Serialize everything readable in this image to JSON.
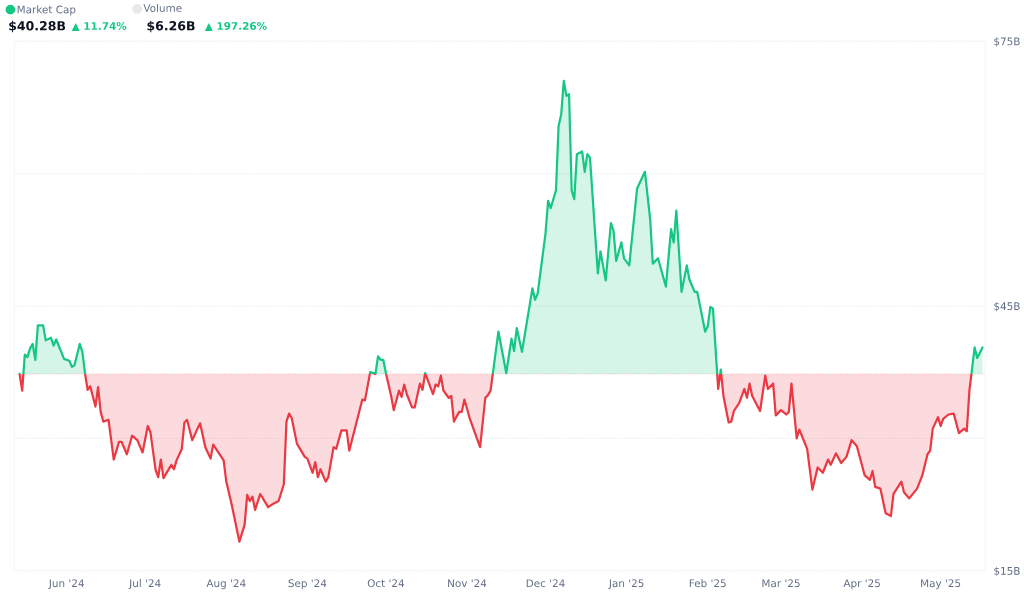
{
  "chart_data": {
    "type": "area",
    "x": [
      "2024-05-14",
      "2024-05-15",
      "2024-05-16",
      "2024-05-17",
      "2024-05-18",
      "2024-05-19",
      "2024-05-20",
      "2024-05-21",
      "2024-05-23",
      "2024-05-24",
      "2024-05-26",
      "2024-05-27",
      "2024-05-28",
      "2024-05-31",
      "2024-06-02",
      "2024-06-03",
      "2024-06-04",
      "2024-06-06",
      "2024-06-07",
      "2024-06-08",
      "2024-06-09",
      "2024-06-10",
      "2024-06-12",
      "2024-06-13",
      "2024-06-14",
      "2024-06-15",
      "2024-06-17",
      "2024-06-19",
      "2024-06-21",
      "2024-06-22",
      "2024-06-24",
      "2024-06-26",
      "2024-06-28",
      "2024-06-30",
      "2024-07-02",
      "2024-07-03",
      "2024-07-05",
      "2024-07-06",
      "2024-07-07",
      "2024-07-08",
      "2024-07-11",
      "2024-07-12",
      "2024-07-13",
      "2024-07-15",
      "2024-07-16",
      "2024-07-17",
      "2024-07-19",
      "2024-07-21",
      "2024-07-22",
      "2024-07-24",
      "2024-07-26",
      "2024-07-27",
      "2024-07-31",
      "2024-08-01",
      "2024-08-03",
      "2024-08-06",
      "2024-08-08",
      "2024-08-09",
      "2024-08-10",
      "2024-08-11",
      "2024-08-12",
      "2024-08-14",
      "2024-08-17",
      "2024-08-19",
      "2024-08-21",
      "2024-08-23",
      "2024-08-24",
      "2024-08-25",
      "2024-08-26",
      "2024-08-28",
      "2024-08-31",
      "2024-09-01",
      "2024-09-03",
      "2024-09-04",
      "2024-09-05",
      "2024-09-06",
      "2024-09-08",
      "2024-09-09",
      "2024-09-11",
      "2024-09-12",
      "2024-09-14",
      "2024-09-16",
      "2024-09-17",
      "2024-09-22",
      "2024-09-23",
      "2024-09-25",
      "2024-09-27",
      "2024-09-28",
      "2024-09-29",
      "2024-09-30",
      "2024-10-01",
      "2024-10-03",
      "2024-10-04",
      "2024-10-06",
      "2024-10-07",
      "2024-10-08",
      "2024-10-09",
      "2024-10-11",
      "2024-10-12",
      "2024-10-14",
      "2024-10-15",
      "2024-10-16",
      "2024-10-19",
      "2024-10-20",
      "2024-10-21",
      "2024-10-22",
      "2024-10-23",
      "2024-10-25",
      "2024-10-26",
      "2024-10-27",
      "2024-10-29",
      "2024-10-30",
      "2024-10-31",
      "2024-11-02",
      "2024-11-06",
      "2024-11-08",
      "2024-11-09",
      "2024-11-10",
      "2024-11-13",
      "2024-11-16",
      "2024-11-18",
      "2024-11-19",
      "2024-11-20",
      "2024-11-22",
      "2024-11-26",
      "2024-11-27",
      "2024-11-28",
      "2024-12-01",
      "2024-12-02",
      "2024-12-03",
      "2024-12-05",
      "2024-12-06",
      "2024-12-07",
      "2024-12-08",
      "2024-12-09",
      "2024-12-10",
      "2024-12-11",
      "2024-12-12",
      "2024-12-13",
      "2024-12-15",
      "2024-12-16",
      "2024-12-17",
      "2024-12-18",
      "2024-12-21",
      "2024-12-22",
      "2024-12-24",
      "2024-12-26",
      "2024-12-27",
      "2024-12-28",
      "2024-12-30",
      "2024-12-31",
      "2025-01-02",
      "2025-01-05",
      "2025-01-08",
      "2025-01-10",
      "2025-01-11",
      "2025-01-13",
      "2025-01-16",
      "2025-01-18",
      "2025-01-19",
      "2025-01-20",
      "2025-01-22",
      "2025-01-24",
      "2025-01-25",
      "2025-01-27",
      "2025-01-28",
      "2025-01-31",
      "2025-02-01",
      "2025-02-02",
      "2025-02-03",
      "2025-02-05",
      "2025-02-06",
      "2025-02-07",
      "2025-02-09",
      "2025-02-10",
      "2025-02-11",
      "2025-02-13",
      "2025-02-15",
      "2025-02-16",
      "2025-02-17",
      "2025-02-18",
      "2025-02-21",
      "2025-02-23",
      "2025-02-24",
      "2025-02-26",
      "2025-02-27",
      "2025-03-01",
      "2025-03-03",
      "2025-03-04",
      "2025-03-05",
      "2025-03-07",
      "2025-03-08",
      "2025-03-11",
      "2025-03-13",
      "2025-03-15",
      "2025-03-17",
      "2025-03-19",
      "2025-03-20",
      "2025-03-22",
      "2025-03-24",
      "2025-03-26",
      "2025-03-28",
      "2025-03-30",
      "2025-04-02",
      "2025-04-04",
      "2025-04-05",
      "2025-04-06",
      "2025-04-08",
      "2025-04-10",
      "2025-04-12",
      "2025-04-13",
      "2025-04-16",
      "2025-04-17",
      "2025-04-19",
      "2025-04-22",
      "2025-04-24",
      "2025-04-26",
      "2025-04-27",
      "2025-04-28",
      "2025-04-30",
      "2025-05-01",
      "2025-05-02",
      "2025-05-04",
      "2025-05-06",
      "2025-05-08",
      "2025-05-10",
      "2025-05-11",
      "2025-05-12",
      "2025-05-14",
      "2025-05-15",
      "2025-05-17"
    ],
    "series": [
      {
        "name": "Market Cap",
        "color": "#16c784",
        "values": [
          37.3,
          35.4,
          39.5,
          39.2,
          40.2,
          40.7,
          38.9,
          42.8,
          42.8,
          41.1,
          41.4,
          40.5,
          41.2,
          39.0,
          38.8,
          38.1,
          38.3,
          40.7,
          39.8,
          37.4,
          35.5,
          35.9,
          33.6,
          35.8,
          33.0,
          31.9,
          32.1,
          27.6,
          29.6,
          29.6,
          28.2,
          30.3,
          29.8,
          28.4,
          31.4,
          30.7,
          26.4,
          25.6,
          27.6,
          25.5,
          27.0,
          26.5,
          27.5,
          28.8,
          31.8,
          32.1,
          29.8,
          31.1,
          31.7,
          29.0,
          27.7,
          29.3,
          27.5,
          25.1,
          22.6,
          18.3,
          20.2,
          23.6,
          22.9,
          23.4,
          21.9,
          23.7,
          22.2,
          22.6,
          22.9,
          24.8,
          31.9,
          32.8,
          32.3,
          29.4,
          27.9,
          27.7,
          26.1,
          27.3,
          25.6,
          26.5,
          25.1,
          25.6,
          29.0,
          28.8,
          30.9,
          30.9,
          28.6,
          34.4,
          34.3,
          37.5,
          37.3,
          39.3,
          38.9,
          38.9,
          37.4,
          34.8,
          33.2,
          35.4,
          34.7,
          36.1,
          35.0,
          33.5,
          33.5,
          36.2,
          35.5,
          37.4,
          35.0,
          36.1,
          35.9,
          37.1,
          35.4,
          34.6,
          34.8,
          31.9,
          33.0,
          33.0,
          34.4,
          32.3,
          29.0,
          34.6,
          34.9,
          35.4,
          42.1,
          37.4,
          41.3,
          39.9,
          42.5,
          39.8,
          47.0,
          45.7,
          46.4,
          53.2,
          56.9,
          56.1,
          58.1,
          65.4,
          66.7,
          70.5,
          68.8,
          69.0,
          58.1,
          57.1,
          62.2,
          62.5,
          60.2,
          62.2,
          61.8,
          48.7,
          51.2,
          47.9,
          54.4,
          53.5,
          50.1,
          52.2,
          50.4,
          49.6,
          58.3,
          60.2,
          54.8,
          49.8,
          50.4,
          47.2,
          53.7,
          52.2,
          55.8,
          46.6,
          49.6,
          48.0,
          46.6,
          46.6,
          42.1,
          42.7,
          44.9,
          44.7,
          35.6,
          37.8,
          34.8,
          31.8,
          31.9,
          33.1,
          34.0,
          35.6,
          34.6,
          36.2,
          34.8,
          33.1,
          37.1,
          35.6,
          36.2,
          32.6,
          33.2,
          32.7,
          33.0,
          36.2,
          30.0,
          31.0,
          28.8,
          24.2,
          26.7,
          26.1,
          27.6,
          27.0,
          28.3,
          27.2,
          27.9,
          29.8,
          29.1,
          25.8,
          25.3,
          26.3,
          24.5,
          24.3,
          21.5,
          21.2,
          23.7,
          25.1,
          23.9,
          23.2,
          24.3,
          25.8,
          28.2,
          28.6,
          31.1,
          32.4,
          31.4,
          32.2,
          32.7,
          32.8,
          30.6,
          31.1,
          30.8,
          35.4,
          40.3,
          39.1,
          40.3
        ]
      }
    ],
    "ref_lines": [
      {
        "axis": "y",
        "value": 37.3,
        "color": "#ea3943",
        "line_style": "dotted"
      }
    ],
    "xlim": [
      "2024-05-12",
      "2025-05-18"
    ],
    "xticks": [
      {
        "value": "2024-06-01",
        "label": "Jun '24"
      },
      {
        "value": "2024-07-01",
        "label": "Jul '24"
      },
      {
        "value": "2024-08-01",
        "label": "Aug '24"
      },
      {
        "value": "2024-09-01",
        "label": "Sep '24"
      },
      {
        "value": "2024-10-01",
        "label": "Oct '24"
      },
      {
        "value": "2024-11-01",
        "label": "Nov '24"
      },
      {
        "value": "2024-12-01",
        "label": "Dec '24"
      },
      {
        "value": "2025-01-01",
        "label": "Jan '25"
      },
      {
        "value": "2025-02-01",
        "label": "Feb '25"
      },
      {
        "value": "2025-03-01",
        "label": "Mar '25"
      },
      {
        "value": "2025-04-01",
        "label": "Apr '25"
      },
      {
        "value": "2025-05-01",
        "label": "May '25"
      }
    ],
    "ylim": [
      15,
      75
    ],
    "yticks": [
      {
        "value": 15,
        "label": "$15B"
      },
      {
        "value": 30,
        "label": null
      },
      {
        "value": 45,
        "label": "$45B"
      },
      {
        "value": 60,
        "label": null
      },
      {
        "value": 75,
        "label": "$75B"
      }
    ],
    "grid": "y",
    "legend": "top left",
    "annotations": [
      "Volume",
      "$40.28B",
      "▲ 11.74%",
      "$6.26B",
      "▲ 197.26%"
    ]
  }
}
